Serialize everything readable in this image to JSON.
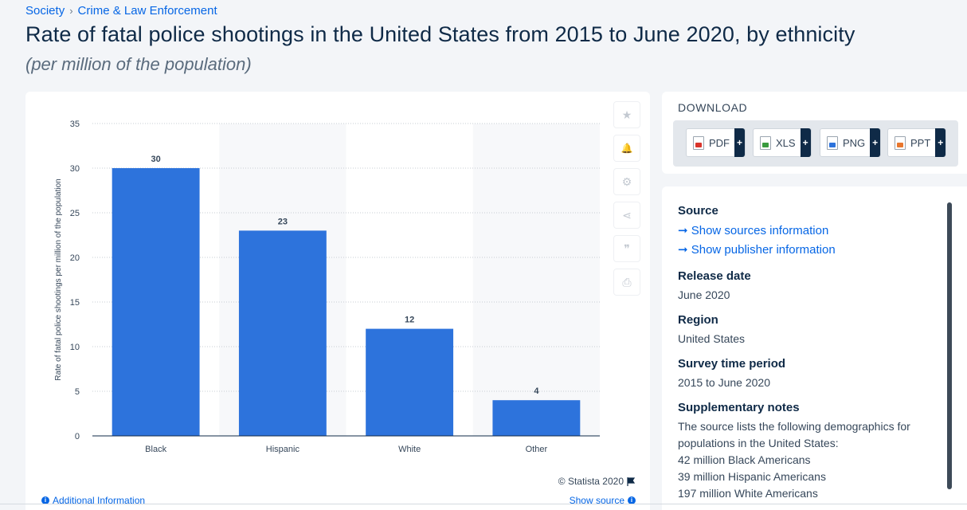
{
  "breadcrumb": [
    "Society",
    "Crime & Law Enforcement"
  ],
  "breadcrumb_sep": "›",
  "title": "Rate of fatal police shootings in the United States from 2015 to June 2020, by ethnicity",
  "subtitle": "(per million of the population)",
  "chart_data": {
    "type": "bar",
    "categories": [
      "Black",
      "Hispanic",
      "White",
      "Other"
    ],
    "values": [
      30,
      23,
      12,
      4
    ],
    "ylabel": "Rate of fatal police shootings per million of the population",
    "xlabel": "",
    "ylim": [
      0,
      35
    ],
    "yticks": [
      0,
      5,
      10,
      15,
      20,
      25,
      30,
      35
    ],
    "grid": true,
    "bar_color": "#2d73dc",
    "data_labels": true
  },
  "toolbar": {
    "icons": [
      "star-icon",
      "bell-icon",
      "gear-icon",
      "share-icon",
      "quote-icon",
      "print-icon"
    ],
    "glyphs": [
      "★",
      "🔔",
      "⚙",
      "⋖",
      "❞",
      "⎙"
    ]
  },
  "copyright": "© Statista 2020",
  "footer": {
    "additional_info": "Additional Information",
    "show_source": "Show source"
  },
  "download": {
    "heading": "DOWNLOAD",
    "buttons": [
      {
        "label": "PDF",
        "color": "#d9342b"
      },
      {
        "label": "XLS",
        "color": "#3a9b3f"
      },
      {
        "label": "PNG",
        "color": "#2d73dc"
      },
      {
        "label": "PPT",
        "color": "#e8772e"
      }
    ],
    "plus": "+"
  },
  "info": {
    "source_heading": "Source",
    "show_sources": "➞ Show sources information",
    "show_publisher": "➞ Show publisher information",
    "release_heading": "Release date",
    "release_value": "June 2020",
    "region_heading": "Region",
    "region_value": "United States",
    "survey_heading": "Survey time period",
    "survey_value": "2015 to June 2020",
    "notes_heading": "Supplementary notes",
    "notes_lines": [
      "The source lists the following demographics for populations in the United States:",
      "42 million Black Americans",
      "39 million Hispanic Americans",
      "197 million White Americans"
    ]
  }
}
